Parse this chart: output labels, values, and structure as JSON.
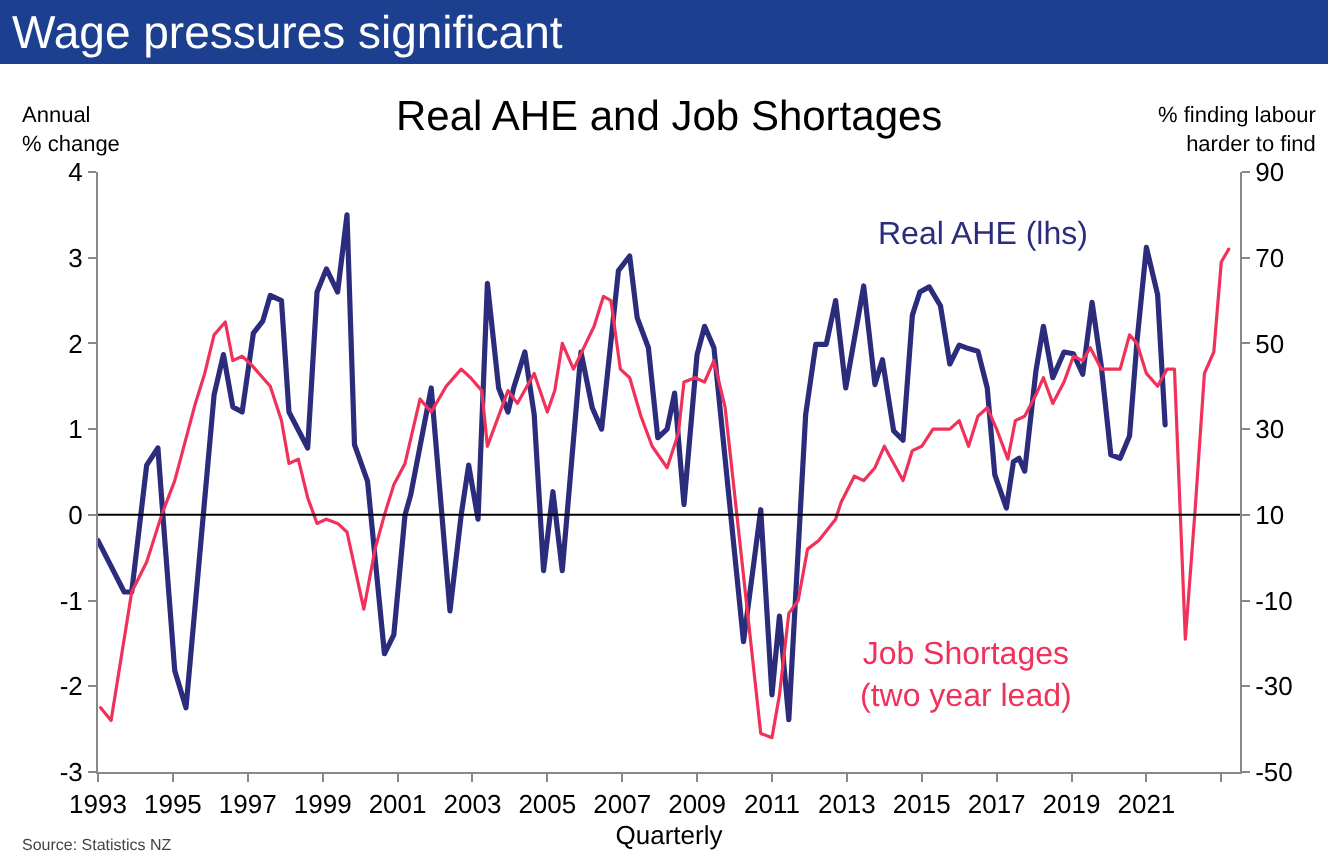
{
  "chart_data": {
    "type": "line",
    "title": "Wage pressures significant",
    "subtitle": "Real AHE and Job Shortages",
    "xlabel": "Quarterly",
    "ylabel": "Annual\n% change",
    "y2label": "% finding labour\nharder to find",
    "annotations": [
      "Source: Statistics NZ"
    ],
    "xlim": [
      1993,
      2023.5
    ],
    "xticks": [
      1993,
      1995,
      1997,
      1999,
      2001,
      2003,
      2005,
      2007,
      2009,
      2011,
      2013,
      2015,
      2017,
      2019,
      2021,
      {
        "value": 2023,
        "label": null
      }
    ],
    "ylim": [
      -3,
      4
    ],
    "yticks": [
      -3,
      -2,
      -1,
      0,
      1,
      2,
      3,
      4
    ],
    "y2lim": [
      -50,
      90
    ],
    "y2ticks": [
      -50,
      -30,
      -10,
      10,
      30,
      50,
      70,
      90
    ],
    "ref_lines": [
      {
        "axis": "y",
        "value": 0,
        "color": "#000000"
      }
    ],
    "legend": false,
    "grid": false,
    "marker": "none",
    "line_style": "solid",
    "series": [
      {
        "name": "Real AHE (lhs)",
        "color": "#2b2d7c",
        "axis": "y",
        "x": [
          1993.0,
          1993.7,
          1993.9,
          1994.3,
          1994.6,
          1994.75,
          1995.05,
          1995.35,
          1996.1,
          1996.35,
          1996.6,
          1996.85,
          1997.15,
          1997.4,
          1997.6,
          1997.9,
          1998.1,
          1998.6,
          1998.85,
          1999.1,
          1999.4,
          1999.65,
          1999.85,
          2000.2,
          2000.65,
          2000.9,
          2001.2,
          2001.35,
          2001.9,
          2002.4,
          2002.7,
          2002.9,
          2003.15,
          2003.4,
          2003.7,
          2003.95,
          2004.1,
          2004.4,
          2004.65,
          2004.9,
          2005.15,
          2005.4,
          2005.9,
          2006.2,
          2006.45,
          2006.9,
          2007.2,
          2007.4,
          2007.7,
          2007.95,
          2008.2,
          2008.4,
          2008.65,
          2009.0,
          2009.2,
          2009.45,
          2010.24,
          2010.7,
          2011.0,
          2011.2,
          2011.45,
          2011.9,
          2012.17,
          2012.45,
          2012.7,
          2012.97,
          2013.45,
          2013.75,
          2013.95,
          2014.25,
          2014.5,
          2014.75,
          2014.95,
          2015.2,
          2015.5,
          2015.75,
          2016.0,
          2016.25,
          2016.5,
          2016.75,
          2016.95,
          2017.26,
          2017.45,
          2017.6,
          2017.75,
          2018.05,
          2018.25,
          2018.5,
          2018.8,
          2019.05,
          2019.3,
          2019.55,
          2019.8,
          2020.05,
          2020.3,
          2020.55,
          2020.75,
          2021.0,
          2021.3,
          2021.5
        ],
        "values": [
          -0.3,
          -0.9,
          -0.9,
          0.58,
          0.78,
          -0.1,
          -1.82,
          -2.25,
          1.4,
          1.87,
          1.26,
          1.2,
          2.12,
          2.26,
          2.56,
          2.5,
          1.2,
          0.78,
          2.6,
          2.87,
          2.6,
          3.5,
          0.82,
          0.39,
          -1.62,
          -1.4,
          0.0,
          0.23,
          1.48,
          -1.12,
          0.0,
          0.58,
          -0.05,
          2.7,
          1.48,
          1.2,
          1.48,
          1.9,
          1.17,
          -0.65,
          0.27,
          -0.65,
          1.9,
          1.25,
          1.0,
          2.85,
          3.02,
          2.3,
          1.95,
          0.9,
          1.0,
          1.42,
          0.12,
          1.87,
          2.2,
          1.95,
          -1.48,
          0.06,
          -2.1,
          -1.18,
          -2.39,
          1.17,
          1.99,
          1.99,
          2.5,
          1.48,
          2.67,
          1.52,
          1.81,
          0.98,
          0.87,
          2.33,
          2.6,
          2.66,
          2.44,
          1.76,
          1.98,
          1.94,
          1.91,
          1.48,
          0.47,
          0.08,
          0.62,
          0.66,
          0.51,
          1.68,
          2.2,
          1.6,
          1.9,
          1.88,
          1.64,
          2.48,
          1.72,
          0.7,
          0.66,
          0.92,
          2.03,
          3.12,
          2.57,
          1.05
        ]
      },
      {
        "name": "Job Shortages\n(two year lead)",
        "color": "#f0325a",
        "axis": "y2",
        "x": [
          1993.07,
          1993.35,
          1993.9,
          1994.3,
          1994.7,
          1995.05,
          1995.6,
          1995.85,
          1996.1,
          1996.4,
          1996.6,
          1996.85,
          1997.1,
          1997.6,
          1997.9,
          1998.1,
          1998.35,
          1998.6,
          1998.85,
          1999.1,
          1999.4,
          1999.65,
          2000.1,
          2000.4,
          2000.65,
          2000.9,
          2001.2,
          2001.6,
          2001.9,
          2002.3,
          2002.7,
          2002.95,
          2003.25,
          2003.4,
          2003.95,
          2004.2,
          2004.65,
          2005.0,
          2005.2,
          2005.4,
          2005.7,
          2006.25,
          2006.5,
          2006.7,
          2006.95,
          2007.2,
          2007.5,
          2007.8,
          2008.2,
          2008.5,
          2008.65,
          2008.95,
          2009.2,
          2009.45,
          2009.75,
          2010.0,
          2010.45,
          2010.7,
          2011.0,
          2011.2,
          2011.45,
          2011.7,
          2011.95,
          2012.25,
          2012.7,
          2012.85,
          2013.2,
          2013.45,
          2013.75,
          2014.0,
          2014.5,
          2014.75,
          2015.0,
          2015.3,
          2015.75,
          2016.0,
          2016.25,
          2016.5,
          2016.75,
          2017.0,
          2017.3,
          2017.5,
          2017.75,
          2018.05,
          2018.25,
          2018.5,
          2018.8,
          2019.05,
          2019.3,
          2019.5,
          2019.8,
          2020.3,
          2020.55,
          2020.75,
          2021.0,
          2021.3,
          2021.55,
          2021.75,
          2022.04,
          2022.3,
          2022.55,
          2022.8,
          2023.0,
          2023.2
        ],
        "values": [
          -35,
          -38,
          -8,
          -1,
          10,
          18,
          36,
          43,
          52,
          55,
          46,
          47,
          45,
          40,
          32,
          22,
          23,
          14,
          8,
          9,
          8,
          6,
          -12,
          2,
          10,
          17,
          22,
          37,
          34,
          40,
          44,
          42,
          39,
          26,
          39,
          36,
          43,
          34,
          39,
          50,
          44,
          54,
          61,
          60,
          44,
          42,
          33,
          26,
          21,
          29,
          41,
          42,
          41,
          46,
          35,
          15,
          -21,
          -41,
          -42,
          -32,
          -13,
          -10,
          2,
          4,
          9,
          13,
          19,
          18,
          21,
          26,
          18,
          25,
          26,
          30,
          30,
          32,
          26,
          33,
          35,
          30,
          23,
          32,
          33,
          38,
          42,
          36,
          41,
          47,
          46,
          49,
          44,
          44,
          52,
          50,
          43,
          40,
          44,
          44,
          -19,
          11,
          43,
          48,
          69,
          72
        ]
      }
    ]
  }
}
